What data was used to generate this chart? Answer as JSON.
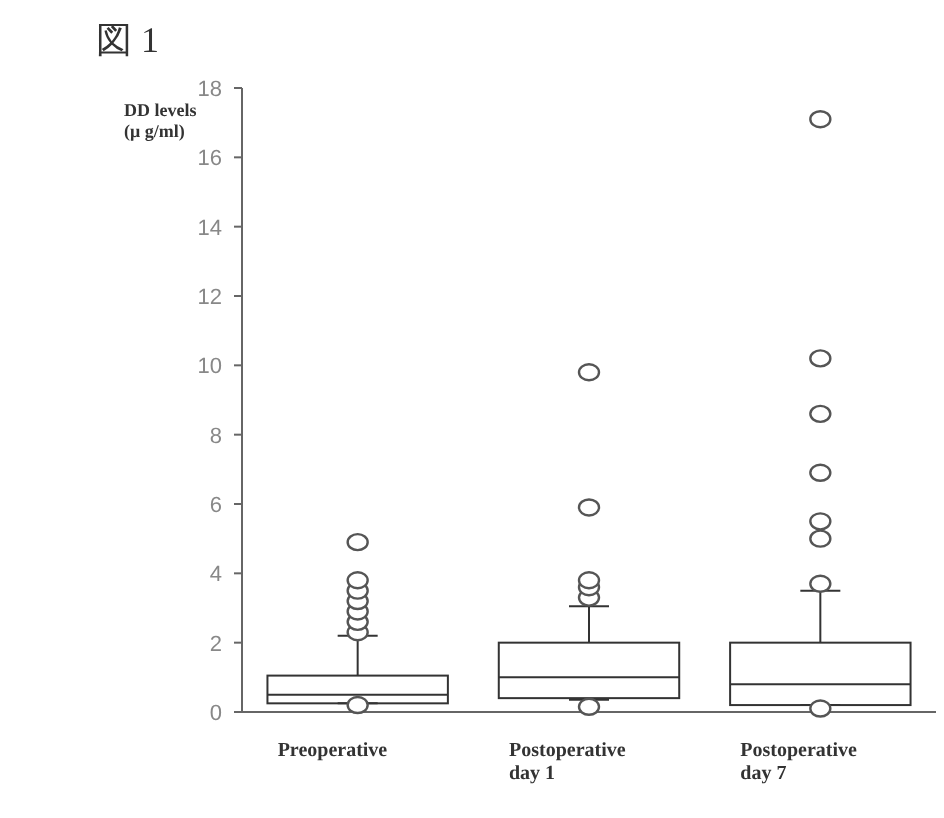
{
  "chart_data": {
    "type": "box",
    "title": "図 1",
    "ylabel": "DD levels\n(μ g/ml)",
    "categories": [
      "Preoperative",
      "Postoperative\nday 1",
      "Postoperative\nday 7"
    ],
    "boxes": [
      {
        "low": 0.25,
        "q1": 0.25,
        "median": 0.5,
        "q3": 1.05,
        "high": 2.2,
        "outliers": [
          0.2,
          2.3,
          2.6,
          2.9,
          3.2,
          3.5,
          3.8,
          4.9
        ]
      },
      {
        "low": 0.35,
        "q1": 0.4,
        "median": 1.0,
        "q3": 2.0,
        "high": 3.05,
        "outliers": [
          0.15,
          3.3,
          3.6,
          3.8,
          5.9,
          9.8
        ]
      },
      {
        "low": 0.2,
        "q1": 0.2,
        "median": 0.8,
        "q3": 2.0,
        "high": 3.5,
        "outliers": [
          0.1,
          3.7,
          5.0,
          5.5,
          6.9,
          8.6,
          10.2,
          17.1
        ]
      }
    ],
    "ylim": [
      0,
      18
    ],
    "yticks": [
      0,
      2,
      4,
      6,
      8,
      10,
      12,
      14,
      16,
      18
    ]
  }
}
